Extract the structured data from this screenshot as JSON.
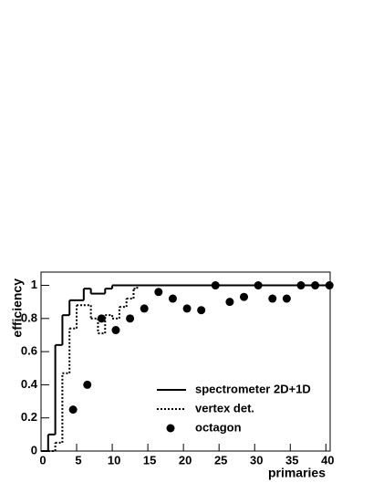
{
  "chart_data": {
    "type": "step-scatter",
    "xlabel": "primaries",
    "ylabel": "efficiency",
    "xlim": [
      0,
      40.6
    ],
    "ylim": [
      0,
      1.08
    ],
    "xticks": [
      0,
      5,
      10,
      15,
      20,
      25,
      30,
      35,
      40
    ],
    "yticks": [
      0,
      0.2,
      0.4,
      0.6,
      0.8,
      1
    ],
    "legend": "lower right",
    "series": [
      {
        "name": "spectrometer 2D+1D",
        "kind": "step",
        "dash": "solid",
        "color": "#000000",
        "x": [
          0,
          1,
          2,
          3,
          4,
          5,
          6,
          7,
          8,
          9,
          10,
          40
        ],
        "values": [
          0,
          0.1,
          0.64,
          0.82,
          0.91,
          0.91,
          0.98,
          0.95,
          0.95,
          0.98,
          1,
          1
        ]
      },
      {
        "name": "vertex det.",
        "kind": "step",
        "dash": "dotted",
        "color": "#000000",
        "x": [
          0,
          1,
          2,
          3,
          4,
          5,
          6,
          7,
          8,
          9,
          10,
          11,
          12,
          13,
          13.5
        ],
        "values": [
          0,
          0,
          0.05,
          0.47,
          0.74,
          0.88,
          0.88,
          0.8,
          0.71,
          0.82,
          0.8,
          0.87,
          0.92,
          0.98,
          1
        ]
      },
      {
        "name": "octagon",
        "kind": "points",
        "color": "#000000",
        "x": [
          4.5,
          6.5,
          8.5,
          10.5,
          12.5,
          14.5,
          16.5,
          18.5,
          20.5,
          22.5,
          24.5,
          26.5,
          28.5,
          30.5,
          32.5,
          34.5,
          36.5,
          38.5,
          40.5
        ],
        "values": [
          0.25,
          0.4,
          0.8,
          0.73,
          0.8,
          0.86,
          0.96,
          0.92,
          0.86,
          0.85,
          1,
          0.9,
          0.93,
          1,
          0.92,
          0.92,
          1,
          1,
          1
        ]
      }
    ]
  }
}
